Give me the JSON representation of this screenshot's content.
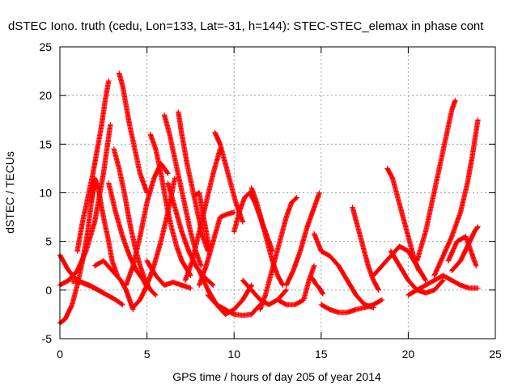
{
  "chart_data": {
    "type": "scatter",
    "title": "dSTEC Iono. truth (cedu, Lon=133, Lat=-31, h=144): STEC-STEC_elemax in phase cont",
    "xlabel": "GPS time / hours of day 205 of year 2014",
    "ylabel": "dSTEC  / TECUs",
    "xlim": [
      0,
      25
    ],
    "ylim": [
      -5,
      25
    ],
    "xticks": [
      0,
      5,
      10,
      15,
      20,
      25
    ],
    "yticks": [
      -5,
      0,
      5,
      10,
      15,
      20,
      25
    ],
    "grid": true,
    "marker": "+",
    "color": "#ff0000",
    "series": [
      {
        "x": [
          0.0,
          0.5,
          1.0,
          1.5,
          2.0,
          2.5
        ],
        "y": [
          3.6,
          2.0,
          1.0,
          0.6,
          0.2,
          -0.3
        ]
      },
      {
        "x": [
          0.0,
          0.3,
          0.7,
          1.0,
          1.3,
          1.6,
          1.8,
          2.0
        ],
        "y": [
          -3.4,
          -3.0,
          -1.5,
          0.5,
          3.0,
          6.0,
          9.0,
          11.0
        ]
      },
      {
        "x": [
          0.0,
          0.5,
          1.0,
          1.5,
          2.0,
          2.3,
          2.5,
          2.7,
          2.9
        ],
        "y": [
          0.5,
          1.0,
          2.0,
          4.0,
          7.0,
          10.0,
          12.0,
          14.5,
          17.0
        ]
      },
      {
        "x": [
          1.0,
          1.3,
          1.6,
          1.9,
          2.1,
          2.4,
          2.6,
          2.8
        ],
        "y": [
          4.0,
          7.0,
          9.5,
          12.0,
          14.0,
          17.0,
          19.5,
          21.5
        ]
      },
      {
        "x": [
          0.7,
          1.2,
          1.7,
          2.2,
          2.7,
          3.2,
          3.6
        ],
        "y": [
          0.9,
          0.8,
          0.5,
          0.0,
          -0.5,
          -1.0,
          -1.5
        ]
      },
      {
        "x": [
          1.8,
          2.0,
          2.2,
          2.5,
          2.8,
          3.0,
          3.3
        ],
        "y": [
          9.0,
          11.5,
          10.5,
          7.5,
          5.0,
          3.0,
          1.5
        ]
      },
      {
        "x": [
          2.8,
          3.2,
          3.6,
          4.0,
          4.4,
          4.8,
          5.0
        ],
        "y": [
          11.0,
          8.0,
          5.5,
          3.5,
          2.0,
          1.0,
          0.3
        ]
      },
      {
        "x": [
          3.1,
          3.4,
          3.7,
          4.0,
          4.3,
          4.6,
          4.9,
          5.2,
          5.5
        ],
        "y": [
          14.5,
          12.5,
          10.0,
          7.0,
          4.5,
          2.5,
          1.0,
          0.0,
          -0.5
        ]
      },
      {
        "x": [
          3.4,
          3.6,
          3.8,
          4.0,
          4.3,
          4.6,
          5.0
        ],
        "y": [
          22.3,
          21.0,
          19.0,
          17.0,
          14.5,
          12.0,
          10.0
        ]
      },
      {
        "x": [
          2.0,
          2.5,
          3.0,
          3.5,
          3.8,
          4.0,
          4.2
        ],
        "y": [
          2.5,
          3.0,
          2.0,
          1.0,
          0.0,
          -1.0,
          -2.0
        ]
      },
      {
        "x": [
          4.2,
          4.6,
          5.0,
          5.4,
          5.8,
          6.2,
          6.6
        ],
        "y": [
          -1.8,
          -1.0,
          0.5,
          2.5,
          5.0,
          8.0,
          11.5
        ]
      },
      {
        "x": [
          3.8,
          4.2,
          4.6,
          5.0,
          5.4,
          5.8,
          6.2
        ],
        "y": [
          0.5,
          2.5,
          5.5,
          9.0,
          11.5,
          13.0,
          12.0
        ]
      },
      {
        "x": [
          5.2,
          5.5,
          5.8,
          6.1,
          6.4,
          6.7,
          7.0,
          7.5
        ],
        "y": [
          16.0,
          14.5,
          12.0,
          9.0,
          6.5,
          4.5,
          3.0,
          1.5
        ]
      },
      {
        "x": [
          5.0,
          5.5,
          6.0,
          6.5,
          7.0,
          7.5
        ],
        "y": [
          3.0,
          1.5,
          0.5,
          0.8,
          0.5,
          0.2
        ]
      },
      {
        "x": [
          6.0,
          6.3,
          6.6,
          6.9,
          7.2,
          7.5,
          7.8,
          8.1
        ],
        "y": [
          18.0,
          16.0,
          13.5,
          11.0,
          8.5,
          6.0,
          4.0,
          2.5
        ]
      },
      {
        "x": [
          6.8,
          7.0,
          7.3,
          7.6,
          7.9,
          8.2,
          8.5
        ],
        "y": [
          18.3,
          16.0,
          13.0,
          10.5,
          8.0,
          5.5,
          4.0
        ]
      },
      {
        "x": [
          7.8,
          8.0,
          8.2,
          8.4,
          8.6
        ],
        "y": [
          9.8,
          10.0,
          8.0,
          6.0,
          4.0
        ]
      },
      {
        "x": [
          6.2,
          6.6,
          7.0,
          7.4,
          7.8,
          8.2,
          8.5,
          8.8
        ],
        "y": [
          11.0,
          8.5,
          6.0,
          4.0,
          2.5,
          1.5,
          1.0,
          0.5
        ]
      },
      {
        "x": [
          7.2,
          7.6,
          8.0,
          8.4,
          8.8,
          9.2
        ],
        "y": [
          1.0,
          3.0,
          6.0,
          9.0,
          12.0,
          14.5
        ]
      },
      {
        "x": [
          8.0,
          8.4,
          8.8,
          9.2,
          9.6,
          10.0
        ],
        "y": [
          0.5,
          2.5,
          5.0,
          7.5,
          7.8,
          8.0
        ]
      },
      {
        "x": [
          8.9,
          9.2,
          9.5,
          9.8,
          10.1,
          10.5
        ],
        "y": [
          16.2,
          15.0,
          13.0,
          11.0,
          9.0,
          7.0
        ]
      },
      {
        "x": [
          8.5,
          9.0,
          9.5,
          10.0,
          10.5,
          11.0,
          11.5
        ],
        "y": [
          -0.5,
          -1.5,
          -2.0,
          -2.5,
          -2.6,
          -2.5,
          -1.5
        ]
      },
      {
        "x": [
          10.0,
          10.3,
          10.6,
          10.9,
          11.2,
          11.5,
          11.8,
          12.2
        ],
        "y": [
          6.0,
          8.0,
          9.5,
          10.0,
          9.0,
          7.5,
          6.0,
          4.0
        ]
      },
      {
        "x": [
          8.0,
          8.5,
          9.0,
          9.5,
          10.0,
          10.5,
          11.0
        ],
        "y": [
          2.0,
          0.0,
          -1.5,
          -2.5,
          -2.0,
          -1.0,
          0.5
        ]
      },
      {
        "x": [
          11.0,
          11.3,
          11.6,
          11.9,
          12.2,
          12.5,
          12.8
        ],
        "y": [
          10.5,
          9.0,
          7.0,
          5.0,
          3.0,
          1.5,
          0.5
        ]
      },
      {
        "x": [
          10.5,
          11.0,
          11.5,
          12.0,
          12.5,
          13.0
        ],
        "y": [
          1.0,
          0.0,
          -1.0,
          -1.5,
          -1.0,
          0.0
        ]
      },
      {
        "x": [
          11.5,
          11.8,
          12.1,
          12.4,
          12.7,
          13.0,
          13.3,
          13.6
        ],
        "y": [
          -2.0,
          -0.5,
          1.5,
          3.5,
          5.5,
          7.5,
          9.0,
          9.5
        ]
      },
      {
        "x": [
          12.5,
          13.0,
          13.5,
          14.0,
          14.3,
          14.6
        ],
        "y": [
          -1.0,
          -1.5,
          -1.5,
          -1.0,
          1.0,
          2.5
        ]
      },
      {
        "x": [
          13.0,
          13.4,
          13.8,
          14.2,
          14.6,
          14.9
        ],
        "y": [
          0.5,
          2.0,
          4.0,
          6.5,
          8.5,
          10.0
        ]
      },
      {
        "x": [
          14.5,
          14.7,
          14.9,
          15.1
        ],
        "y": [
          1.2,
          0.6,
          0.2,
          -0.4
        ]
      },
      {
        "x": [
          14.6,
          15.0,
          15.5,
          16.0,
          16.5,
          17.0,
          17.5,
          18.0
        ],
        "y": [
          5.8,
          4.0,
          3.5,
          2.5,
          1.0,
          -0.5,
          -1.5,
          -1.8
        ]
      },
      {
        "x": [
          15.0,
          15.5,
          16.0,
          16.5,
          17.0,
          17.5,
          18.0,
          18.5
        ],
        "y": [
          -1.5,
          -2.0,
          -2.3,
          -2.3,
          -2.0,
          -1.8,
          -1.5,
          -1.0
        ]
      },
      {
        "x": [
          16.8,
          17.1,
          17.4,
          17.7,
          18.0,
          18.3
        ],
        "y": [
          8.5,
          6.5,
          4.5,
          2.5,
          1.0,
          0.0
        ]
      },
      {
        "x": [
          18.8,
          19.1,
          19.4,
          19.7,
          20.0,
          20.3,
          20.6
        ],
        "y": [
          12.5,
          11.5,
          9.5,
          7.5,
          5.5,
          3.5,
          2.0
        ]
      },
      {
        "x": [
          18.0,
          18.5,
          19.0,
          19.5,
          20.0,
          20.5,
          21.0
        ],
        "y": [
          1.5,
          2.5,
          3.5,
          4.5,
          4.0,
          2.5,
          1.0
        ]
      },
      {
        "x": [
          19.0,
          19.5,
          20.0,
          20.5,
          21.0,
          21.5,
          22.0
        ],
        "y": [
          4.0,
          2.5,
          1.0,
          0.0,
          -0.3,
          0.0,
          1.0
        ]
      },
      {
        "x": [
          20.5,
          21.0,
          21.3,
          21.6,
          21.9,
          22.2,
          22.5,
          22.7
        ],
        "y": [
          3.0,
          6.0,
          8.5,
          11.0,
          13.5,
          16.0,
          18.5,
          19.5
        ]
      },
      {
        "x": [
          21.5,
          22.0,
          22.5,
          23.0,
          23.4,
          23.7,
          24.0
        ],
        "y": [
          1.5,
          3.5,
          5.5,
          8.0,
          11.0,
          14.0,
          17.5
        ]
      },
      {
        "x": [
          22.3,
          22.8,
          23.3,
          23.6,
          23.9
        ],
        "y": [
          3.0,
          5.0,
          5.5,
          4.0,
          2.5
        ]
      },
      {
        "x": [
          20.0,
          20.5,
          21.0,
          21.5,
          22.0,
          22.5,
          23.0,
          23.5,
          24.0
        ],
        "y": [
          -0.5,
          0.0,
          0.5,
          1.0,
          1.5,
          1.0,
          0.5,
          0.2,
          0.2
        ]
      },
      {
        "x": [
          22.5,
          23.0,
          23.4,
          23.8,
          24.0
        ],
        "y": [
          2.0,
          3.0,
          4.5,
          6.0,
          6.5
        ]
      }
    ]
  }
}
